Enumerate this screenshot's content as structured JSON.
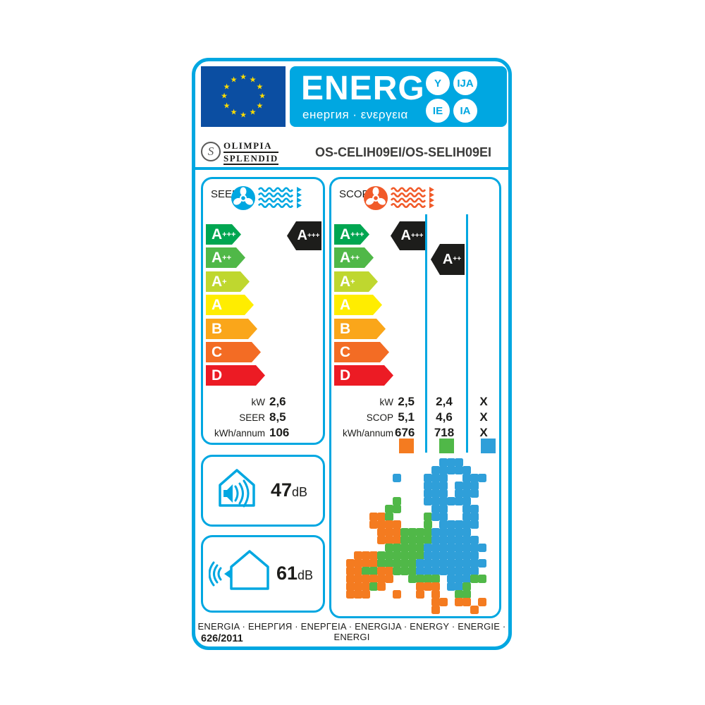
{
  "colors": {
    "accent_blue": "#00A7E1",
    "flag_blue": "#0B4EA2",
    "star_yellow": "#FFDD00",
    "ink": "#1D1D1B",
    "rating_black": "#1D1D1B",
    "class_colors": [
      "#00A651",
      "#50B848",
      "#BFD72F",
      "#FFED00",
      "#FAA61A",
      "#F36C24",
      "#EC1B24"
    ],
    "map_orange": "#F47B20",
    "map_green": "#50B848",
    "map_blue": "#2F9FD9"
  },
  "header": {
    "title": "ENERG",
    "subtitle": "енергия · ενεργεια",
    "badges": [
      "Y",
      "IJA",
      "IE",
      "IA"
    ]
  },
  "brand": {
    "logo_letter": "S",
    "name_line1": "OLIMPIA",
    "name_line2": "SPLENDID",
    "model": "OS-CELIH09EI/OS-SELIH09EI"
  },
  "energy_classes": [
    {
      "label": "A",
      "sup": "+++"
    },
    {
      "label": "A",
      "sup": "++"
    },
    {
      "label": "A",
      "sup": "+"
    },
    {
      "label": "A",
      "sup": ""
    },
    {
      "label": "B",
      "sup": ""
    },
    {
      "label": "C",
      "sup": ""
    },
    {
      "label": "D",
      "sup": ""
    }
  ],
  "seer": {
    "title": "SEER",
    "rating": {
      "label": "A",
      "sup": "+++"
    },
    "rows": [
      {
        "label": "kW",
        "value": "2,6"
      },
      {
        "label": "SEER",
        "value": "8,5"
      },
      {
        "label": "kWh/annum",
        "value": "106"
      }
    ]
  },
  "scop": {
    "title": "SCOP",
    "ratings": [
      {
        "label": "A",
        "sup": "+++"
      },
      {
        "label": "A",
        "sup": "++"
      }
    ],
    "rows": [
      {
        "label": "kW",
        "values": [
          "2,5",
          "2,4",
          "X"
        ]
      },
      {
        "label": "SCOP",
        "values": [
          "5,1",
          "4,6",
          "X"
        ]
      },
      {
        "label": "kWh/annum",
        "values": [
          "676",
          "718",
          "X"
        ]
      }
    ],
    "legend": [
      "#F47B20",
      "#50B848",
      "#2F9FD9"
    ]
  },
  "noise": [
    {
      "value": "47",
      "unit": "dB"
    },
    {
      "value": "61",
      "unit": "dB"
    }
  ],
  "footer": {
    "languages": "ENERGIA · ЕНЕРГИЯ · ENEPΓEIA · ENERGIJA · ENERGY · ENERGIE · ENERGI",
    "regulation": "626/2011"
  },
  "map_grid": [
    "............bbb......",
    "...........bbbbb.....",
    "......b...bbb..bbb...",
    "..........bbb.bbb....",
    "..........bbb.bbb....",
    "......g...bbbbbb.....",
    ".....gg....bb..bb....",
    "...oog....gbb..bb....",
    "...oooo...g.bbbbb....",
    "....oooggggbbbbb.....",
    "....oooggggbbbbbb....",
    ".....gggggbbbbbbbb...",
    ".oooggggggbbbbbbb....",
    "oooogggggbbbbbbbbb...",
    "ooggoogggbbbbbbbb....",
    "oooooo..gggg.bbbgg...",
    "ooogo....ooo.bbg.....",
    "ooo...o..o.o..gg.....",
    "...........oo.oo.o...",
    "...........o....o...."
  ]
}
